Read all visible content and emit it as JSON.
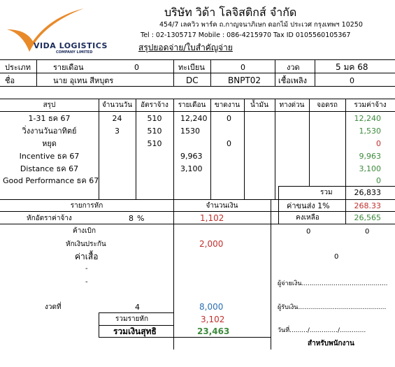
{
  "company": {
    "logo_main": "VIDA LOGISTICS",
    "logo_sub": "COMPANY LIMITED",
    "name": "บริษัท วิด้า โลจิสติกส์ จำกัด",
    "address": "454/7 เลควิว พาร์ค ถ.กาญจนาภิเษก ดอกไม้ ประเวศ กรุงเทพฯ 10250",
    "contact": "Tel : 02-1305717 Mobile : 086-4215970  Tax ID 0105560105367",
    "doc_title": "สรุปยอดจ่าย/ใบสำคัญจ่าย"
  },
  "info": {
    "type_label": "ประเภท",
    "type_value": "รายเดือน",
    "type_num": "0",
    "reg_label": "ทะเบียน",
    "reg_num": "0",
    "period_label": "งวด",
    "period_value": "5 มค 68",
    "name_label": "ชื่อ",
    "name_value": "นาย อุเทน สีหบุตร",
    "dept": "DC",
    "plate": "BNPT02",
    "fuel_label": "เชื้อเพลิง",
    "fuel_value": "0"
  },
  "summary": {
    "headers": [
      "สรุป",
      "จำนวนวัน",
      "อัตราจ้าง",
      "รายเดือน",
      "ขาดงาน",
      "น้ำมัน",
      "ทางด่วน",
      "จอดรถ",
      "รวมค่าจ้าง"
    ],
    "rows": [
      {
        "label": "1-31 ธค 67",
        "days": "24",
        "rate": "510",
        "monthly": "12,240",
        "absent": "0",
        "total": "12,240",
        "total_color": "green"
      },
      {
        "label": "วิ่งงานวันอาทิตย์",
        "days": "3",
        "rate": "510",
        "monthly": "1530",
        "absent": "",
        "total": "1,530",
        "total_color": "green"
      },
      {
        "label": "หยุด",
        "days": "",
        "rate": "510",
        "monthly": "",
        "absent": "0",
        "total": "0",
        "total_color": "red"
      },
      {
        "label": "Incentive ธค 67",
        "days": "",
        "rate": "",
        "monthly": "9,963",
        "absent": "",
        "total": "9,963",
        "total_color": "green"
      },
      {
        "label": "Distance ธค 67",
        "days": "",
        "rate": "",
        "monthly": "3,100",
        "absent": "",
        "total": "3,100",
        "total_color": "green"
      },
      {
        "label": "Good Performance ธค 67",
        "days": "",
        "rate": "",
        "monthly": "",
        "absent": "",
        "total": "0",
        "total_color": "green"
      }
    ],
    "sum_label": "รวม",
    "sum_value": "26,833"
  },
  "fees": {
    "fee_label": "ค่าขนส่ง 1%",
    "fee_value": "268.33",
    "balance_label": "คงเหลือ",
    "balance_value": "26,565",
    "extra_left": "0",
    "extra_right": "0",
    "extra_mid": "0"
  },
  "deductions": {
    "header_item": "รายการหัก",
    "header_amount": "จำนวนเงิน",
    "rate_label": "หักอัตราค่าจ้าง",
    "rate_pct": "8",
    "pct_sign": "%",
    "rate_amount": "1,102",
    "owed_label": "ค้างเบิก",
    "insurance_label": "หักเงินประกัน",
    "insurance_amount": "2,000",
    "shirt_label": "ค่าเสื้อ",
    "dash1": "-",
    "dash2": "-",
    "installment_label": "งวดที่",
    "installment_num": "4",
    "installment_amount": "8,000",
    "total_deduct_label": "รวมรายหัก",
    "total_deduct_value": "3,102",
    "net_label": "รวมเงินสุทธิ",
    "net_value": "23,463"
  },
  "signatures": {
    "payer": "ผู้จ่ายเงิน...........................................",
    "receiver": "ผู้รับเงิน............................................",
    "date": "วันที่........./............../.............",
    "for_employee": "สำหรับพนักงาน"
  }
}
